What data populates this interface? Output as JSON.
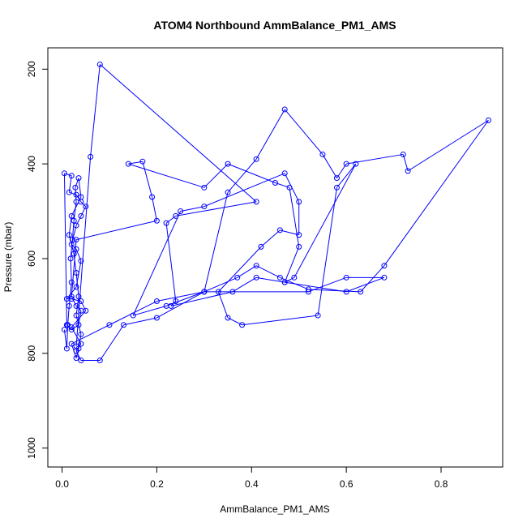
{
  "chart_data": {
    "type": "line",
    "title": "ATOM4 Northbound AmmBalance_PM1_AMS",
    "xlabel": "AmmBalance_PM1_AMS",
    "ylabel": "Pressure (mbar)",
    "xlim": [
      -0.03,
      0.93
    ],
    "ylim": [
      1040,
      155
    ],
    "y_reversed": true,
    "x_ticks": [
      0.0,
      0.2,
      0.4,
      0.6,
      0.8
    ],
    "x_tick_labels": [
      "0.0",
      "0.2",
      "0.4",
      "0.6",
      "0.8"
    ],
    "y_ticks": [
      200,
      400,
      600,
      800,
      1000
    ],
    "y_tick_labels": [
      "200",
      "400",
      "600",
      "800",
      "1000"
    ],
    "grid": false,
    "series": [
      {
        "color": "#0000ff",
        "marker": "open-circle",
        "points": [
          [
            0.005,
            750
          ],
          [
            0.01,
            790
          ],
          [
            0.012,
            740
          ],
          [
            0.015,
            700
          ],
          [
            0.02,
            650
          ],
          [
            0.018,
            600
          ],
          [
            0.022,
            560
          ],
          [
            0.025,
            520
          ],
          [
            0.03,
            480
          ],
          [
            0.028,
            450
          ],
          [
            0.035,
            430
          ],
          [
            0.04,
            470
          ],
          [
            0.02,
            510
          ],
          [
            0.015,
            550
          ],
          [
            0.025,
            590
          ],
          [
            0.03,
            630
          ],
          [
            0.035,
            680
          ],
          [
            0.03,
            720
          ],
          [
            0.04,
            760
          ],
          [
            0.035,
            790
          ],
          [
            0.03,
            810
          ],
          [
            0.02,
            780
          ],
          [
            0.1,
            740
          ],
          [
            0.2,
            690
          ],
          [
            0.3,
            670
          ],
          [
            0.35,
            460
          ],
          [
            0.41,
            390
          ],
          [
            0.47,
            285
          ],
          [
            0.55,
            380
          ],
          [
            0.58,
            430
          ],
          [
            0.6,
            400
          ],
          [
            0.72,
            380
          ],
          [
            0.73,
            415
          ],
          [
            0.9,
            308
          ],
          [
            0.68,
            615
          ],
          [
            0.63,
            670
          ],
          [
            0.52,
            665
          ],
          [
            0.46,
            640
          ],
          [
            0.41,
            615
          ],
          [
            0.37,
            640
          ],
          [
            0.3,
            670
          ],
          [
            0.22,
            700
          ],
          [
            0.15,
            720
          ],
          [
            0.25,
            500
          ],
          [
            0.3,
            490
          ],
          [
            0.47,
            420
          ],
          [
            0.5,
            480
          ],
          [
            0.5,
            550
          ],
          [
            0.46,
            540
          ],
          [
            0.42,
            575
          ],
          [
            0.33,
            670
          ],
          [
            0.35,
            725
          ],
          [
            0.38,
            740
          ],
          [
            0.54,
            720
          ],
          [
            0.58,
            450
          ],
          [
            0.62,
            400
          ],
          [
            0.49,
            640
          ],
          [
            0.47,
            650
          ],
          [
            0.6,
            670
          ],
          [
            0.68,
            640
          ],
          [
            0.6,
            640
          ],
          [
            0.52,
            670
          ],
          [
            0.3,
            670
          ],
          [
            0.2,
            725
          ],
          [
            0.13,
            740
          ],
          [
            0.08,
            815
          ],
          [
            0.04,
            815
          ],
          [
            0.03,
            795
          ],
          [
            0.04,
            780
          ],
          [
            0.02,
            745
          ],
          [
            0.05,
            710
          ],
          [
            0.04,
            690
          ],
          [
            0.02,
            685
          ],
          [
            0.01,
            685
          ],
          [
            0.03,
            660
          ],
          [
            0.04,
            605
          ],
          [
            0.03,
            580
          ],
          [
            0.02,
            570
          ],
          [
            0.03,
            530
          ],
          [
            0.04,
            510
          ],
          [
            0.05,
            490
          ],
          [
            0.04,
            480
          ],
          [
            0.03,
            465
          ],
          [
            0.015,
            460
          ],
          [
            0.02,
            425
          ],
          [
            0.005,
            420
          ],
          [
            0.01,
            740
          ],
          [
            0.02,
            750
          ],
          [
            0.035,
            740
          ],
          [
            0.04,
            710
          ],
          [
            0.03,
            700
          ],
          [
            0.02,
            680
          ],
          [
            0.03,
            560
          ],
          [
            0.2,
            520
          ],
          [
            0.19,
            470
          ],
          [
            0.17,
            395
          ],
          [
            0.14,
            400
          ],
          [
            0.3,
            450
          ],
          [
            0.35,
            400
          ],
          [
            0.45,
            440
          ],
          [
            0.48,
            450
          ],
          [
            0.5,
            575
          ],
          [
            0.47,
            650
          ],
          [
            0.41,
            640
          ],
          [
            0.36,
            670
          ],
          [
            0.23,
            700
          ],
          [
            0.24,
            690
          ],
          [
            0.22,
            525
          ],
          [
            0.24,
            510
          ],
          [
            0.41,
            480
          ],
          [
            0.08,
            190
          ],
          [
            0.06,
            385
          ],
          [
            0.03,
            785
          ]
        ]
      }
    ]
  }
}
